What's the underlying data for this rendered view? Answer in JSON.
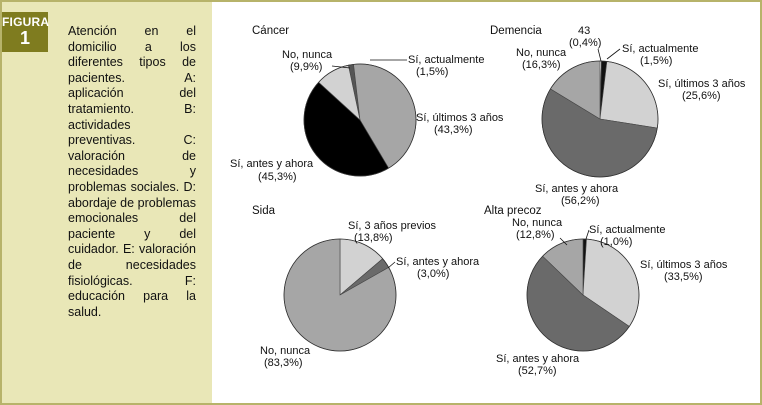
{
  "figure": {
    "label": "FIGURA",
    "number": "1",
    "caption": "Atención en el domicilio a los diferentes tipos de pacientes. A: aplicación del tratamiento. B: actividades preventivas. C: valoración de necesidades y problemas sociales. D: abordaje de problemas emocionales del paciente y del cuidador. E: valoración de necesidades fisiológicas. F: educación para la salud."
  },
  "chart_data": [
    {
      "type": "pie",
      "title": "Cáncer",
      "slices": [
        {
          "label": "Sí, actualmente",
          "value_text": "(1,5%)",
          "value": 1.5,
          "color": "#555555"
        },
        {
          "label": "Sí, últimos 3 años",
          "value_text": "(43,3%)",
          "value": 43.3,
          "color": "#a6a6a6"
        },
        {
          "label": "Sí, antes y ahora",
          "value_text": "(45,3%)",
          "value": 45.3,
          "color": "#000000"
        },
        {
          "label": "No, nunca",
          "value_text": "(9,9%)",
          "value": 9.9,
          "color": "#d2d2d2"
        }
      ]
    },
    {
      "type": "pie",
      "title": "Demencia",
      "slices": [
        {
          "label": "43",
          "value_text": "(0,4%)",
          "value": 0.4,
          "color": "#ffffff"
        },
        {
          "label": "Sí, actualmente",
          "value_text": "(1,5%)",
          "value": 1.5,
          "color": "#111111"
        },
        {
          "label": "Sí, últimos 3 años",
          "value_text": "(25,6%)",
          "value": 25.6,
          "color": "#d2d2d2"
        },
        {
          "label": "Sí, antes y ahora",
          "value_text": "(56,2%)",
          "value": 56.2,
          "color": "#6a6a6a"
        },
        {
          "label": "No, nunca",
          "value_text": "(16,3%)",
          "value": 16.3,
          "color": "#a6a6a6"
        }
      ]
    },
    {
      "type": "pie",
      "title": "Sida",
      "slices": [
        {
          "label": "Sí, 3 años previos",
          "value_text": "(13,8%)",
          "value": 13.8,
          "color": "#d2d2d2"
        },
        {
          "label": "Sí, antes y ahora",
          "value_text": "(3,0%)",
          "value": 3.0,
          "color": "#6a6a6a"
        },
        {
          "label": "No, nunca",
          "value_text": "(83,3%)",
          "value": 83.3,
          "color": "#a6a6a6"
        }
      ]
    },
    {
      "type": "pie",
      "title": "Alta precoz",
      "slices": [
        {
          "label": "Sí, actualmente",
          "value_text": "(1,0%)",
          "value": 1.0,
          "color": "#111111"
        },
        {
          "label": "Sí, últimos 3 años",
          "value_text": "(33,5%)",
          "value": 33.5,
          "color": "#d2d2d2"
        },
        {
          "label": "Sí, antes y ahora",
          "value_text": "(52,7%)",
          "value": 52.7,
          "color": "#6a6a6a"
        },
        {
          "label": "No, nunca",
          "value_text": "(12,8%)",
          "value": 12.8,
          "color": "#a6a6a6"
        }
      ]
    }
  ]
}
